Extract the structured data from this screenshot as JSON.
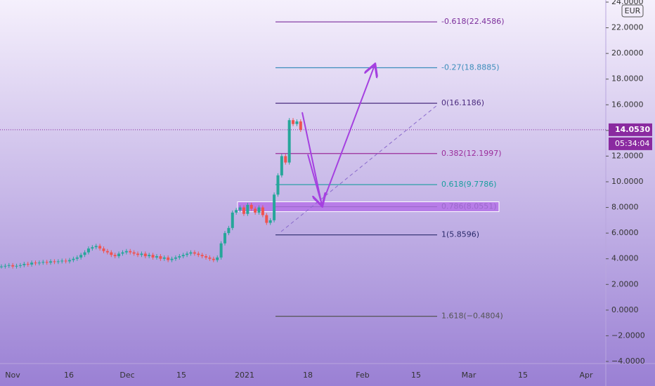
{
  "chart_data": {
    "type": "candlestick",
    "currency": "EUR",
    "values": [
      3.4,
      3.45,
      3.5,
      3.4,
      3.45,
      3.5,
      3.6,
      3.55,
      3.7,
      3.65,
      3.7,
      3.75,
      3.7,
      3.8,
      3.75,
      3.8,
      3.85,
      3.8,
      3.9,
      4.0,
      4.1,
      4.3,
      4.5,
      4.8,
      4.9,
      5.0,
      4.8,
      4.6,
      4.5,
      4.3,
      4.2,
      4.4,
      4.5,
      4.6,
      4.5,
      4.4,
      4.3,
      4.4,
      4.2,
      4.3,
      4.1,
      4.2,
      4.0,
      4.1,
      3.9,
      4.0,
      4.1,
      4.2,
      4.3,
      4.4,
      4.5,
      4.4,
      4.3,
      4.2,
      4.1,
      4.0,
      3.9,
      4.1,
      5.2,
      6.0,
      6.4,
      7.6,
      7.8,
      8.0,
      7.5,
      8.2,
      7.9,
      7.6,
      8.0,
      7.4,
      6.8,
      7.0,
      9.0,
      10.5,
      12.0,
      11.5,
      14.8,
      14.5,
      14.7,
      14.053
    ],
    "up_color": "#26a69a",
    "down_color": "#ef5350",
    "x_labels": [
      "Nov",
      "16",
      "Dec",
      "15",
      "2021",
      "18",
      "Feb",
      "15",
      "Mar",
      "15",
      "Apr"
    ],
    "ylim": [
      -4,
      24
    ],
    "yticks": [
      {
        "value": 24,
        "label": "24.0000"
      },
      {
        "value": 22,
        "label": "22.0000"
      },
      {
        "value": 20,
        "label": "20.0000"
      },
      {
        "value": 18,
        "label": "18.0000"
      },
      {
        "value": 16,
        "label": "16.0000"
      },
      {
        "value": 14,
        "label": "14.0000"
      },
      {
        "value": 12,
        "label": "12.0000"
      },
      {
        "value": 10,
        "label": "10.0000"
      },
      {
        "value": 8,
        "label": "8.0000"
      },
      {
        "value": 6,
        "label": "6.0000"
      },
      {
        "value": 4,
        "label": "4.0000"
      },
      {
        "value": 2,
        "label": "2.0000"
      },
      {
        "value": 0,
        "label": "0.0000"
      },
      {
        "value": -2,
        "label": "−2.0000"
      },
      {
        "value": -4,
        "label": "−4.0000"
      }
    ],
    "current_price": {
      "value": 14.053,
      "label": "14.0530"
    },
    "countdown": "05:34:04",
    "fib_levels": [
      {
        "label": "-0.618(22.4586)",
        "value": 22.4586,
        "color": "#7b2d9b"
      },
      {
        "label": "-0.27(18.8885)",
        "value": 18.8885,
        "color": "#3c8dbb"
      },
      {
        "label": "0(16.1186)",
        "value": 16.1186,
        "color": "#4a2a7e"
      },
      {
        "label": "0.382(12.1997)",
        "value": 12.1997,
        "color": "#9b2d9b"
      },
      {
        "label": "0.618(9.7786)",
        "value": 9.7786,
        "color": "#1a9e9e"
      },
      {
        "label": "0.786(8.0551)",
        "value": 8.0551,
        "color": "#9b6acb"
      },
      {
        "label": "1(5.8596)",
        "value": 5.8596,
        "color": "#2a2a6a"
      },
      {
        "label": "1.618(−0.4804)",
        "value": -0.4804,
        "color": "#555555"
      }
    ]
  }
}
